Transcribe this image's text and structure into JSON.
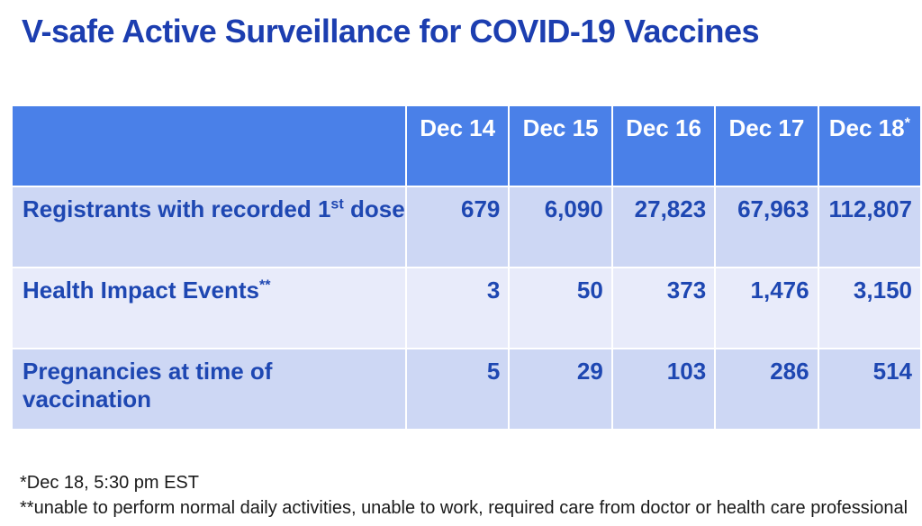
{
  "title": "V-safe Active Surveillance for COVID-19 Vaccines",
  "table": {
    "header": {
      "corner": "",
      "cols": [
        {
          "label": "Dec 14",
          "sup": ""
        },
        {
          "label": "Dec 15",
          "sup": ""
        },
        {
          "label": "Dec 16",
          "sup": ""
        },
        {
          "label": "Dec 17",
          "sup": ""
        },
        {
          "label": "Dec 18",
          "sup": "*"
        }
      ]
    },
    "rows": [
      {
        "label": "Registrants with recorded 1",
        "sup": "st",
        "label_end": " dose",
        "values": [
          "679",
          "6,090",
          "27,823",
          "67,963",
          "112,807"
        ]
      },
      {
        "label": "Health Impact Events",
        "sup": "**",
        "label_end": "",
        "values": [
          "3",
          "50",
          "373",
          "1,476",
          "3,150"
        ]
      },
      {
        "label": "Pregnancies at time of vaccination",
        "sup": "",
        "label_end": "",
        "values": [
          "5",
          "29",
          "103",
          "286",
          "514"
        ]
      }
    ]
  },
  "footnotes": [
    "*Dec 18, 5:30 pm EST",
    "**unable to perform normal daily activities, unable to work, required care from doctor or health care professional"
  ],
  "colors": {
    "header_bg": "#4a80e8",
    "header_text": "#ffffff",
    "row_odd_bg": "#cdd7f4",
    "row_even_bg": "#e8ebfa",
    "cell_text": "#1e47b2",
    "title_text": "#1c3eb0",
    "footnote_text": "#1a1a1a"
  }
}
